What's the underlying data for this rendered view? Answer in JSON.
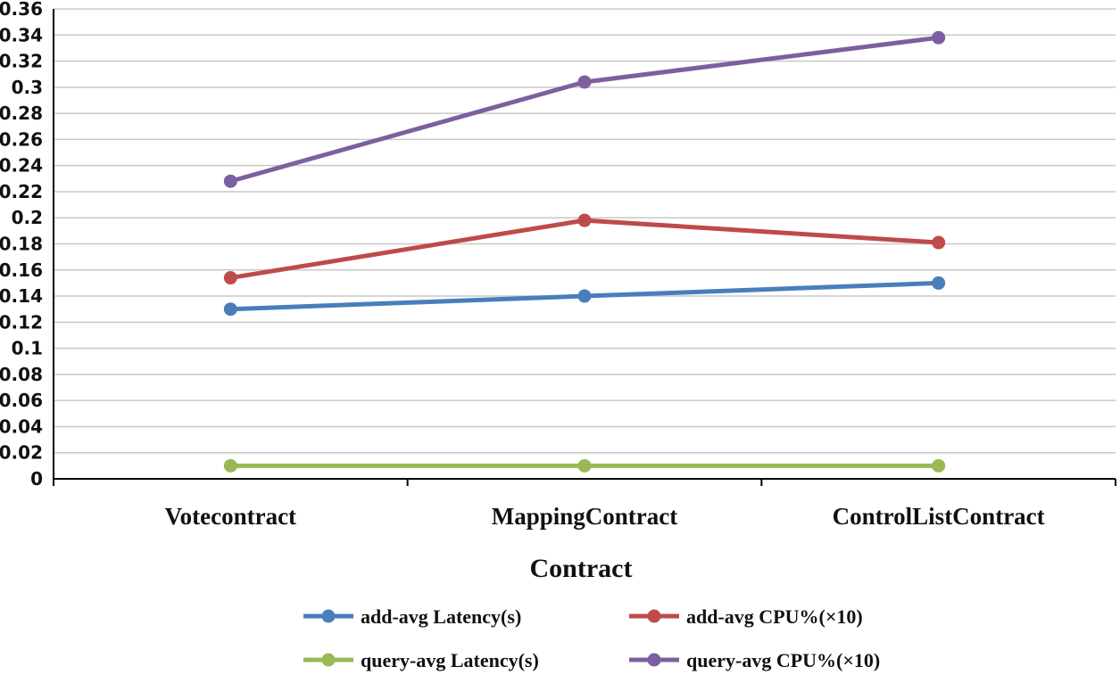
{
  "chart_data": {
    "type": "line",
    "title": "",
    "xlabel": "Contract",
    "ylabel": "",
    "categories": [
      "Votecontract",
      "MappingContract",
      "ControlListContract"
    ],
    "ylim": [
      0,
      0.36
    ],
    "yticks": [
      0,
      0.02,
      0.04,
      0.06,
      0.08,
      0.1,
      0.12,
      0.14,
      0.16,
      0.18,
      0.2,
      0.22,
      0.24,
      0.26,
      0.28,
      0.3,
      0.32,
      0.34,
      0.36
    ],
    "ytick_labels": [
      "0",
      "0.02",
      "0.04",
      "0.06",
      "0.08",
      "0.1",
      "0.12",
      "0.14",
      "0.16",
      "0.18",
      "0.2",
      "0.22",
      "0.24",
      "0.26",
      "0.28",
      "0.3",
      "0.32",
      "0.34",
      "0.36"
    ],
    "grid": true,
    "legend_position": "bottom",
    "series": [
      {
        "name": "add-avg Latency(s)",
        "color": "#4a7ebb",
        "values": [
          0.13,
          0.14,
          0.15
        ]
      },
      {
        "name": "add-avg CPU%(×10)",
        "color": "#be4b48",
        "values": [
          0.154,
          0.198,
          0.181
        ]
      },
      {
        "name": "query-avg Latency(s)",
        "color": "#98b954",
        "values": [
          0.01,
          0.01,
          0.01
        ]
      },
      {
        "name": "query-avg CPU%(×10)",
        "color": "#7d5fa0",
        "values": [
          0.228,
          0.304,
          0.338
        ]
      }
    ]
  }
}
